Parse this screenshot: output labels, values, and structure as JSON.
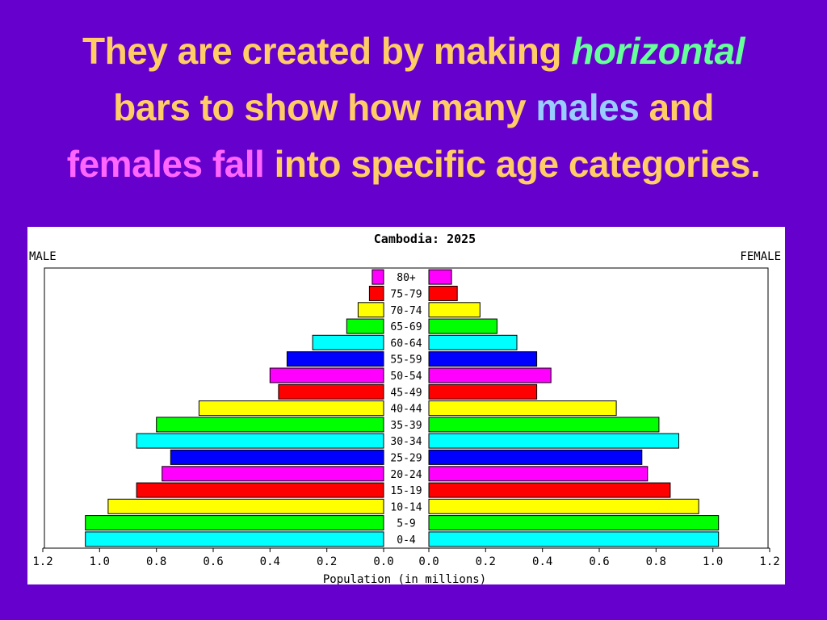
{
  "slide": {
    "title_part1": "They are created by making ",
    "title_horizontal": "horizontal",
    "title_part2": "bars to show how many ",
    "title_males": "males",
    "title_part3": " and",
    "title_females_fall": "females fall",
    "title_part4": " into specific age categories."
  },
  "chart_data": {
    "type": "bar",
    "orientation": "horizontal",
    "title": "Cambodia: 2025",
    "left_label": "MALE",
    "right_label": "FEMALE",
    "xlabel": "Population (in millions)",
    "xlim": [
      0,
      1.2
    ],
    "x_ticks": [
      "1.2",
      "1.0",
      "0.8",
      "0.6",
      "0.4",
      "0.2",
      "0.0",
      "0.0",
      "0.2",
      "0.4",
      "0.6",
      "0.8",
      "1.0",
      "1.2"
    ],
    "categories": [
      "80+",
      "75-79",
      "70-74",
      "65-69",
      "60-64",
      "55-59",
      "50-54",
      "45-49",
      "40-44",
      "35-39",
      "30-34",
      "25-29",
      "20-24",
      "15-19",
      "10-14",
      "5-9",
      "0-4"
    ],
    "series": [
      {
        "name": "MALE",
        "values": [
          0.04,
          0.05,
          0.09,
          0.13,
          0.25,
          0.34,
          0.4,
          0.37,
          0.65,
          0.8,
          0.87,
          0.75,
          0.78,
          0.87,
          0.97,
          1.05,
          1.05
        ]
      },
      {
        "name": "FEMALE",
        "values": [
          0.08,
          0.1,
          0.18,
          0.24,
          0.31,
          0.38,
          0.43,
          0.38,
          0.66,
          0.81,
          0.88,
          0.75,
          0.77,
          0.85,
          0.95,
          1.02,
          1.02
        ]
      }
    ],
    "bar_colors": [
      "#ff00ff",
      "#ff0000",
      "#ffff00",
      "#00ff00",
      "#00ffff",
      "#0000ff",
      "#ff00ff",
      "#ff0000",
      "#ffff00",
      "#00ff00",
      "#00ffff",
      "#0000ff",
      "#ff00ff",
      "#ff0000",
      "#ffff00",
      "#00ff00",
      "#00ffff"
    ]
  }
}
